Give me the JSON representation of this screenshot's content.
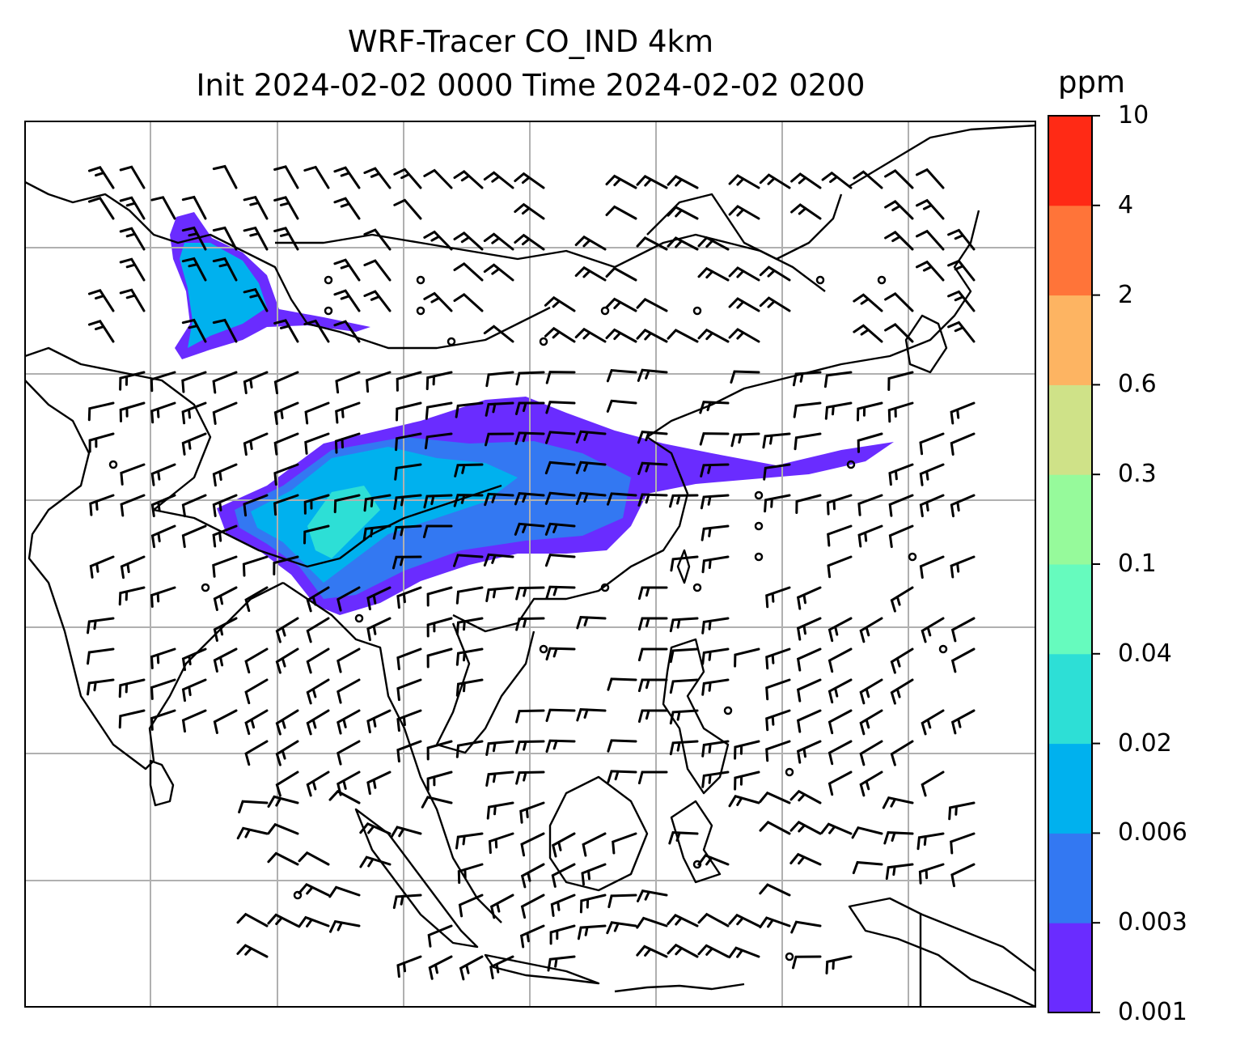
{
  "title": {
    "line1": "WRF-Tracer CO_IND 4km",
    "line2": "Init 2024-02-02 0000 Time 2024-02-02 0200"
  },
  "colorbar": {
    "unit": "ppm",
    "levels": [
      "0.001",
      "0.003",
      "0.006",
      "0.02",
      "0.04",
      "0.1",
      "0.3",
      "0.6",
      "2",
      "4",
      "10"
    ],
    "colors": [
      "#6a2cff",
      "#3378f2",
      "#00b1ee",
      "#2ddfd6",
      "#66fbbe",
      "#96fa9b",
      "#cfe288",
      "#fdb462",
      "#ff7439",
      "#ff2a15"
    ]
  },
  "map": {
    "gridlines": true,
    "gridline_color": "#b0b0b0",
    "coastline_color": "#000000",
    "plume_core_color": "#00b1ee",
    "plume_edge_color": "#6a2cff"
  }
}
